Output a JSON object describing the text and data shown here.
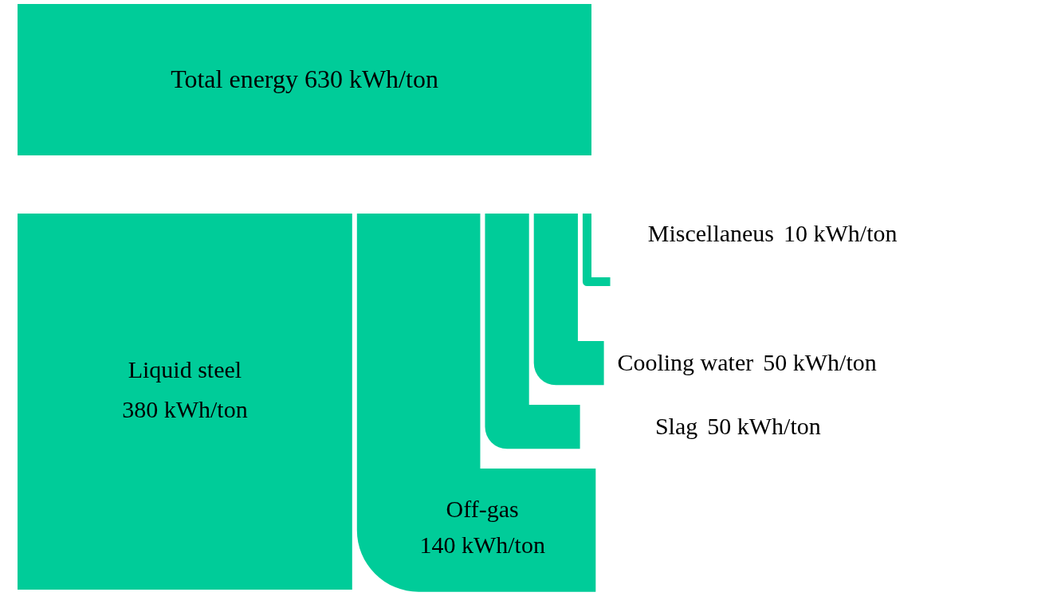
{
  "chart_data": {
    "type": "other",
    "title": "Total energy 630 kWh/ton",
    "categories": [
      "Liquid steel",
      "Off-gas",
      "Slag",
      "Cooling water",
      "Miscellaneus"
    ],
    "values": [
      380,
      140,
      50,
      50,
      10
    ],
    "value_labels": [
      "380 kWh/ton",
      "140 kWh/ton",
      "50 kWh/ton",
      "50 kWh/ton",
      "10 kWh/ton"
    ],
    "colors": [
      "#00cc99",
      "#00cc99",
      "#00cc99",
      "#00cc99",
      "#00cc99"
    ]
  }
}
